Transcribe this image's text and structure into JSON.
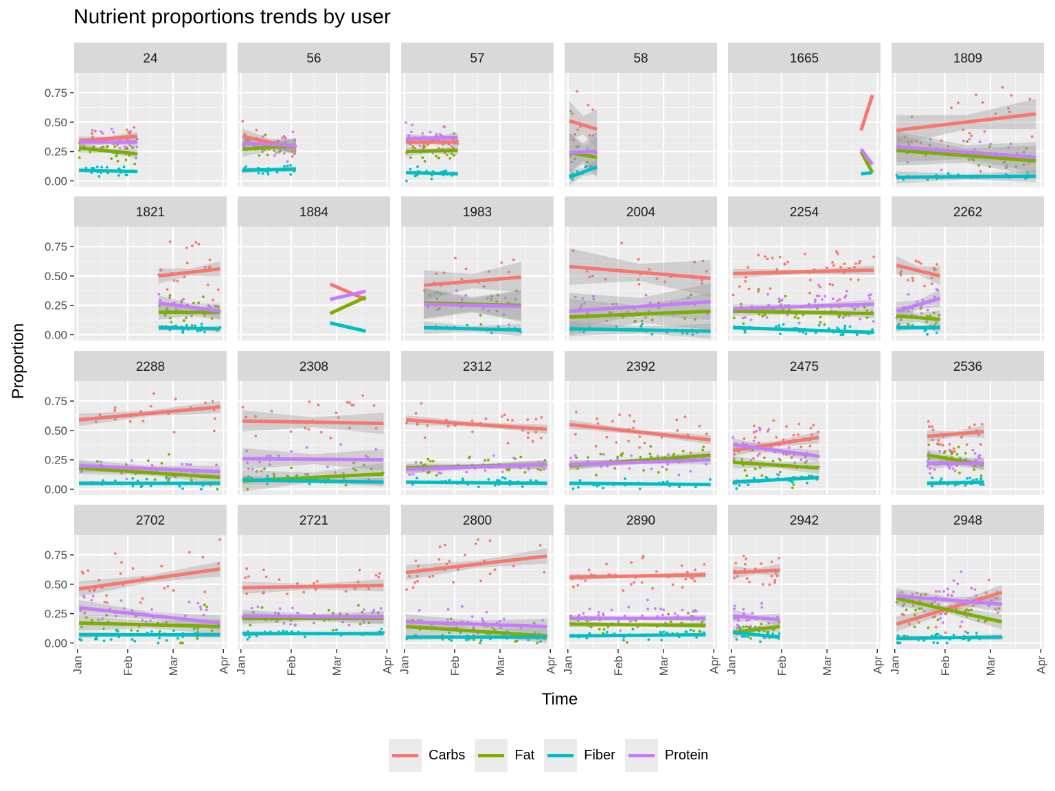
{
  "chart_data": {
    "type": "line",
    "title": "Nutrient proportions trends by user",
    "xlabel": "Time",
    "ylabel": "Proportion",
    "x_ticks": [
      "Jan",
      "Feb",
      "Mar",
      "Apr"
    ],
    "y_ticks": [
      "0.00",
      "0.25",
      "0.50",
      "0.75"
    ],
    "ylim": [
      -0.05,
      0.92
    ],
    "xlim_day": [
      -2,
      92
    ],
    "grid": true,
    "legend_position": "bottom",
    "series": [
      {
        "name": "Carbs",
        "color": "#F8766D"
      },
      {
        "name": "Fat",
        "color": "#7CAE00"
      },
      {
        "name": "Fiber",
        "color": "#00BFC4"
      },
      {
        "name": "Protein",
        "color": "#C77CFF"
      }
    ],
    "panels": [
      {
        "label": "24",
        "x_range": [
          1,
          37
        ],
        "trend_start": [
          0.34,
          0.28,
          0.09,
          0.33
        ],
        "trend_end": [
          0.38,
          0.23,
          0.08,
          0.33
        ],
        "band_halfwidth": 0.03,
        "points_per_series": 22,
        "scatter_sd": [
          0.06,
          0.05,
          0.02,
          0.06
        ]
      },
      {
        "label": "56",
        "x_range": [
          1,
          34
        ],
        "trend_start": [
          0.38,
          0.27,
          0.09,
          0.32
        ],
        "trend_end": [
          0.28,
          0.3,
          0.1,
          0.3
        ],
        "band_halfwidth": 0.05,
        "points_per_series": 22,
        "scatter_sd": [
          0.06,
          0.05,
          0.02,
          0.06
        ]
      },
      {
        "label": "57",
        "x_range": [
          1,
          33
        ],
        "trend_start": [
          0.33,
          0.25,
          0.07,
          0.36
        ],
        "trend_end": [
          0.33,
          0.26,
          0.06,
          0.37
        ],
        "band_halfwidth": 0.03,
        "points_per_series": 22,
        "scatter_sd": [
          0.06,
          0.05,
          0.02,
          0.05
        ]
      },
      {
        "label": "58",
        "x_range": [
          1,
          18
        ],
        "trend_start": [
          0.51,
          0.24,
          0.03,
          0.24
        ],
        "trend_end": [
          0.44,
          0.2,
          0.12,
          0.25
        ],
        "band_halfwidth": 0.13,
        "points_per_series": 10,
        "scatter_sd": [
          0.12,
          0.06,
          0.03,
          0.05
        ]
      },
      {
        "label": "1665",
        "x_range": [
          80,
          87
        ],
        "trend_start": [
          0.43,
          0.25,
          0.06,
          0.27
        ],
        "trend_end": [
          0.73,
          0.07,
          0.07,
          0.14
        ],
        "band_halfwidth": 0.0,
        "points_per_series": 0,
        "scatter_sd": [
          0,
          0,
          0,
          0
        ]
      },
      {
        "label": "1809",
        "x_range": [
          1,
          87
        ],
        "trend_start": [
          0.43,
          0.26,
          0.03,
          0.29
        ],
        "trend_end": [
          0.57,
          0.17,
          0.04,
          0.2
        ],
        "band_halfwidth": 0.1,
        "points_per_series": 22,
        "scatter_sd": [
          0.15,
          0.07,
          0.02,
          0.07
        ]
      },
      {
        "label": "1821",
        "x_range": [
          50,
          88
        ],
        "trend_start": [
          0.5,
          0.19,
          0.06,
          0.27
        ],
        "trend_end": [
          0.56,
          0.19,
          0.05,
          0.2
        ],
        "band_halfwidth": 0.05,
        "points_per_series": 25,
        "scatter_sd": [
          0.12,
          0.06,
          0.02,
          0.06
        ]
      },
      {
        "label": "1884",
        "x_range": [
          55,
          77
        ],
        "trend_start": [
          0.43,
          0.18,
          0.1,
          0.3
        ],
        "trend_end": [
          0.3,
          0.32,
          0.03,
          0.37
        ],
        "band_halfwidth": 0.0,
        "points_per_series": 0,
        "scatter_sd": [
          0,
          0,
          0,
          0
        ]
      },
      {
        "label": "1983",
        "x_range": [
          12,
          72
        ],
        "trend_start": [
          0.42,
          0.27,
          0.06,
          0.26
        ],
        "trend_end": [
          0.49,
          0.25,
          0.04,
          0.24
        ],
        "band_halfwidth": 0.1,
        "points_per_series": 18,
        "scatter_sd": [
          0.1,
          0.06,
          0.02,
          0.06
        ]
      },
      {
        "label": "2004",
        "x_range": [
          1,
          88
        ],
        "trend_start": [
          0.58,
          0.15,
          0.05,
          0.2
        ],
        "trend_end": [
          0.48,
          0.2,
          0.03,
          0.28
        ],
        "band_halfwidth": 0.12,
        "points_per_series": 22,
        "scatter_sd": [
          0.1,
          0.06,
          0.02,
          0.07
        ]
      },
      {
        "label": "2254",
        "x_range": [
          1,
          88
        ],
        "trend_start": [
          0.52,
          0.2,
          0.06,
          0.22
        ],
        "trend_end": [
          0.55,
          0.18,
          0.02,
          0.26
        ],
        "band_halfwidth": 0.03,
        "points_per_series": 45,
        "scatter_sd": [
          0.1,
          0.06,
          0.02,
          0.07
        ]
      },
      {
        "label": "2262",
        "x_range": [
          1,
          28
        ],
        "trend_start": [
          0.59,
          0.16,
          0.06,
          0.2
        ],
        "trend_end": [
          0.5,
          0.13,
          0.06,
          0.31
        ],
        "band_halfwidth": 0.06,
        "points_per_series": 18,
        "scatter_sd": [
          0.1,
          0.05,
          0.02,
          0.06
        ]
      },
      {
        "label": "2288",
        "x_range": [
          1,
          88
        ],
        "trend_start": [
          0.59,
          0.18,
          0.05,
          0.2
        ],
        "trend_end": [
          0.7,
          0.1,
          0.05,
          0.15
        ],
        "band_halfwidth": 0.04,
        "points_per_series": 22,
        "scatter_sd": [
          0.1,
          0.07,
          0.02,
          0.05
        ]
      },
      {
        "label": "2308",
        "x_range": [
          1,
          88
        ],
        "trend_start": [
          0.58,
          0.07,
          0.08,
          0.26
        ],
        "trend_end": [
          0.56,
          0.13,
          0.06,
          0.25
        ],
        "band_halfwidth": 0.07,
        "points_per_series": 26,
        "scatter_sd": [
          0.13,
          0.06,
          0.02,
          0.08
        ]
      },
      {
        "label": "2312",
        "x_range": [
          1,
          88
        ],
        "trend_start": [
          0.59,
          0.18,
          0.06,
          0.17
        ],
        "trend_end": [
          0.51,
          0.21,
          0.05,
          0.21
        ],
        "band_halfwidth": 0.03,
        "points_per_series": 30,
        "scatter_sd": [
          0.07,
          0.05,
          0.02,
          0.04
        ]
      },
      {
        "label": "2392",
        "x_range": [
          1,
          88
        ],
        "trend_start": [
          0.55,
          0.2,
          0.05,
          0.21
        ],
        "trend_end": [
          0.42,
          0.29,
          0.04,
          0.25
        ],
        "band_halfwidth": 0.03,
        "points_per_series": 30,
        "scatter_sd": [
          0.08,
          0.06,
          0.02,
          0.05
        ]
      },
      {
        "label": "2475",
        "x_range": [
          1,
          54
        ],
        "trend_start": [
          0.33,
          0.23,
          0.06,
          0.38
        ],
        "trend_end": [
          0.44,
          0.18,
          0.1,
          0.28
        ],
        "band_halfwidth": 0.04,
        "points_per_series": 30,
        "scatter_sd": [
          0.09,
          0.07,
          0.02,
          0.1
        ]
      },
      {
        "label": "2536",
        "x_range": [
          20,
          55
        ],
        "trend_start": [
          0.45,
          0.29,
          0.05,
          0.22
        ],
        "trend_end": [
          0.49,
          0.21,
          0.06,
          0.22
        ],
        "band_halfwidth": 0.04,
        "points_per_series": 30,
        "scatter_sd": [
          0.07,
          0.06,
          0.02,
          0.07
        ]
      },
      {
        "label": "2702",
        "x_range": [
          1,
          88
        ],
        "trend_start": [
          0.46,
          0.17,
          0.07,
          0.3
        ],
        "trend_end": [
          0.63,
          0.14,
          0.07,
          0.17
        ],
        "band_halfwidth": 0.05,
        "points_per_series": 30,
        "scatter_sd": [
          0.13,
          0.07,
          0.03,
          0.09
        ]
      },
      {
        "label": "2721",
        "x_range": [
          1,
          88
        ],
        "trend_start": [
          0.47,
          0.21,
          0.08,
          0.23
        ],
        "trend_end": [
          0.49,
          0.21,
          0.08,
          0.22
        ],
        "band_halfwidth": 0.04,
        "points_per_series": 30,
        "scatter_sd": [
          0.09,
          0.05,
          0.02,
          0.06
        ]
      },
      {
        "label": "2800",
        "x_range": [
          1,
          88
        ],
        "trend_start": [
          0.6,
          0.14,
          0.05,
          0.18
        ],
        "trend_end": [
          0.74,
          0.06,
          0.05,
          0.14
        ],
        "band_halfwidth": 0.05,
        "points_per_series": 32,
        "scatter_sd": [
          0.12,
          0.06,
          0.02,
          0.07
        ]
      },
      {
        "label": "2890",
        "x_range": [
          1,
          85
        ],
        "trend_start": [
          0.56,
          0.16,
          0.06,
          0.21
        ],
        "trend_end": [
          0.58,
          0.15,
          0.07,
          0.21
        ],
        "band_halfwidth": 0.02,
        "points_per_series": 40,
        "scatter_sd": [
          0.07,
          0.05,
          0.02,
          0.05
        ]
      },
      {
        "label": "2942",
        "x_range": [
          1,
          30
        ],
        "trend_start": [
          0.6,
          0.09,
          0.09,
          0.23
        ],
        "trend_end": [
          0.62,
          0.14,
          0.05,
          0.2
        ],
        "band_halfwidth": 0.04,
        "points_per_series": 25,
        "scatter_sd": [
          0.1,
          0.05,
          0.03,
          0.05
        ]
      },
      {
        "label": "2948",
        "x_range": [
          1,
          66
        ],
        "trend_start": [
          0.16,
          0.38,
          0.04,
          0.4
        ],
        "trend_end": [
          0.43,
          0.18,
          0.05,
          0.33
        ],
        "band_halfwidth": 0.05,
        "points_per_series": 32,
        "scatter_sd": [
          0.1,
          0.08,
          0.03,
          0.1
        ]
      }
    ]
  }
}
